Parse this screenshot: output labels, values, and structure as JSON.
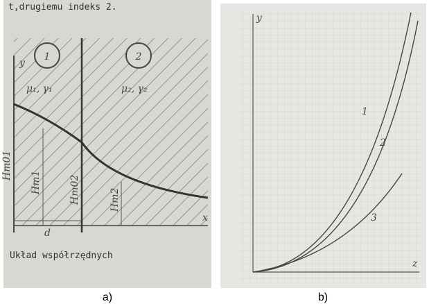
{
  "panels": [
    {
      "caption": "a)",
      "header": "t,drugiemu indeks 2.",
      "regions": [
        "1",
        "2"
      ],
      "media": [
        "μ₁, γ₁",
        "μ₂, γ₂"
      ],
      "axes": {
        "y": "y",
        "x": "x"
      },
      "heights": [
        "Hm01",
        "Hm1",
        "Hm02",
        "Hm2"
      ],
      "width_label": "d",
      "footer": "Układ współrzędnych"
    },
    {
      "caption": "b)",
      "curves": [
        "1",
        "2",
        "3"
      ],
      "axes": {
        "y": "y",
        "x": "z"
      }
    }
  ]
}
